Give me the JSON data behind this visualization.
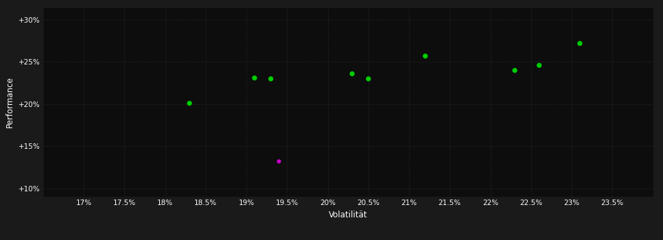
{
  "background_color": "#1a1a1a",
  "plot_bg_color": "#0d0d0d",
  "grid_color": "#2a2a2a",
  "xlabel": "Volatilität",
  "ylabel": "Performance",
  "xlim": [
    0.165,
    0.24
  ],
  "ylim": [
    0.09,
    0.315
  ],
  "xticks": [
    0.17,
    0.175,
    0.18,
    0.185,
    0.19,
    0.195,
    0.2,
    0.205,
    0.21,
    0.215,
    0.22,
    0.225,
    0.23,
    0.235
  ],
  "yticks": [
    0.1,
    0.15,
    0.2,
    0.25,
    0.3
  ],
  "ytick_labels": [
    "+10%",
    "+15%",
    "+20%",
    "+25%",
    "+30%"
  ],
  "xtick_labels": [
    "17%",
    "17.5%",
    "18%",
    "18.5%",
    "19%",
    "19.5%",
    "20%",
    "20.5%",
    "21%",
    "21.5%",
    "22%",
    "22.5%",
    "23%",
    "23.5%"
  ],
  "green_points": [
    [
      0.183,
      0.201
    ],
    [
      0.191,
      0.231
    ],
    [
      0.193,
      0.23
    ],
    [
      0.203,
      0.236
    ],
    [
      0.205,
      0.23
    ],
    [
      0.212,
      0.257
    ],
    [
      0.223,
      0.24
    ],
    [
      0.226,
      0.246
    ],
    [
      0.231,
      0.272
    ]
  ],
  "magenta_points": [
    [
      0.194,
      0.132
    ]
  ],
  "green_color": "#00cc00",
  "magenta_color": "#cc00cc",
  "marker_size": 28,
  "text_color": "#ffffff",
  "tick_fontsize": 7.5,
  "label_fontsize": 8.5
}
